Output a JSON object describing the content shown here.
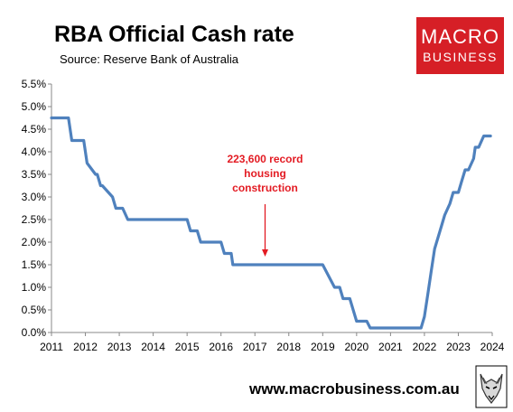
{
  "header": {
    "title": "RBA Official Cash rate",
    "source": "Source: Reserve Bank of Australia"
  },
  "logo": {
    "line1": "MACRO",
    "line2": "BUSINESS",
    "bg_color": "#d61f26"
  },
  "footer": {
    "url": "www.macrobusiness.com.au"
  },
  "mascot": {
    "icon": "wolf-mascot-icon"
  },
  "chart_data": {
    "type": "line",
    "title": "RBA Official Cash rate",
    "subtitle": "Source: Reserve Bank of Australia",
    "xlabel": "",
    "ylabel": "",
    "xlim": [
      2011,
      2024
    ],
    "ylim": [
      0,
      5.5
    ],
    "grid": false,
    "line_color": "#4f81bd",
    "y_ticks": [
      "0.0%",
      "0.5%",
      "1.0%",
      "1.5%",
      "2.0%",
      "2.5%",
      "3.0%",
      "3.5%",
      "4.0%",
      "4.5%",
      "5.0%",
      "5.5%"
    ],
    "x_ticks": [
      "2011",
      "2012",
      "2013",
      "2014",
      "2015",
      "2016",
      "2017",
      "2018",
      "2019",
      "2020",
      "2021",
      "2022",
      "2023",
      "2024"
    ],
    "series": [
      {
        "name": "",
        "x": [
          2011.0,
          2011.5,
          2011.6,
          2011.95,
          2012.05,
          2012.3,
          2012.35,
          2012.45,
          2012.5,
          2012.8,
          2012.9,
          2013.1,
          2013.25,
          2013.35,
          2014.0,
          2015.0,
          2015.1,
          2015.3,
          2015.4,
          2016.0,
          2016.1,
          2016.3,
          2016.35,
          2017.0,
          2018.0,
          2019.0,
          2019.35,
          2019.4,
          2019.5,
          2019.6,
          2019.7,
          2019.8,
          2020.0,
          2020.2,
          2020.3,
          2020.4,
          2020.5,
          2021.0,
          2021.9,
          2022.0,
          2022.1,
          2022.2,
          2022.3,
          2022.5,
          2022.6,
          2022.75,
          2022.85,
          2023.0,
          2023.1,
          2023.2,
          2023.3,
          2023.45,
          2023.5,
          2023.6,
          2023.75,
          2023.95
        ],
        "values": [
          4.75,
          4.75,
          4.25,
          4.25,
          3.75,
          3.5,
          3.5,
          3.25,
          3.25,
          3.0,
          2.75,
          2.75,
          2.5,
          2.5,
          2.5,
          2.5,
          2.25,
          2.25,
          2.0,
          2.0,
          1.75,
          1.75,
          1.5,
          1.5,
          1.5,
          1.5,
          1.0,
          1.0,
          1.0,
          0.75,
          0.75,
          0.75,
          0.25,
          0.25,
          0.25,
          0.1,
          0.1,
          0.1,
          0.1,
          0.35,
          0.85,
          1.35,
          1.85,
          2.35,
          2.6,
          2.85,
          3.1,
          3.1,
          3.35,
          3.6,
          3.6,
          3.85,
          4.1,
          4.1,
          4.35,
          4.35
        ]
      }
    ],
    "annotations": [
      {
        "text_lines": [
          "223,600 record",
          "housing",
          "construction"
        ],
        "x": 2017.3,
        "y": 1.6,
        "color": "#e31b23"
      }
    ]
  }
}
